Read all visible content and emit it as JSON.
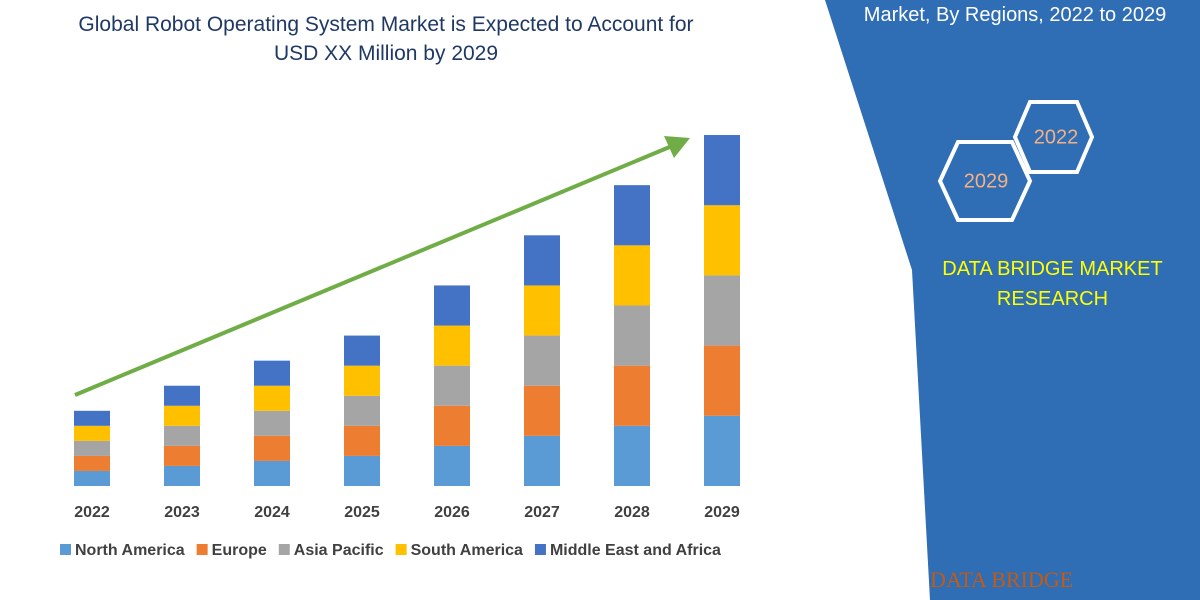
{
  "chart_data": {
    "type": "stacked-bar",
    "title": "Global Robot Operating System Market is Expected to Account for USD XX Million by 2029",
    "categories": [
      "2022",
      "2023",
      "2024",
      "2025",
      "2026",
      "2027",
      "2028",
      "2029"
    ],
    "series": [
      {
        "name": "North America",
        "color": "#5b9bd5",
        "values": [
          15,
          20,
          25,
          30,
          40,
          50,
          60,
          70
        ]
      },
      {
        "name": "Europe",
        "color": "#ed7d31",
        "values": [
          15,
          20,
          25,
          30,
          40,
          50,
          60,
          70
        ]
      },
      {
        "name": "Asia Pacific",
        "color": "#a5a5a5",
        "values": [
          15,
          20,
          25,
          30,
          40,
          50,
          60,
          70
        ]
      },
      {
        "name": "South America",
        "color": "#ffc000",
        "values": [
          15,
          20,
          25,
          30,
          40,
          50,
          60,
          70
        ]
      },
      {
        "name": "Middle East and Africa",
        "color": "#4472c4",
        "values": [
          15,
          20,
          25,
          30,
          40,
          50,
          60,
          70
        ]
      }
    ],
    "ylim": [
      0,
      360
    ]
  },
  "side_panel": {
    "heading": "Market, By Regions, 2022 to 2029",
    "hexagons": [
      "2022",
      "2029"
    ],
    "brand": "DATA BRIDGE MARKET RESEARCH",
    "logo": "DATA BRIDGE"
  }
}
